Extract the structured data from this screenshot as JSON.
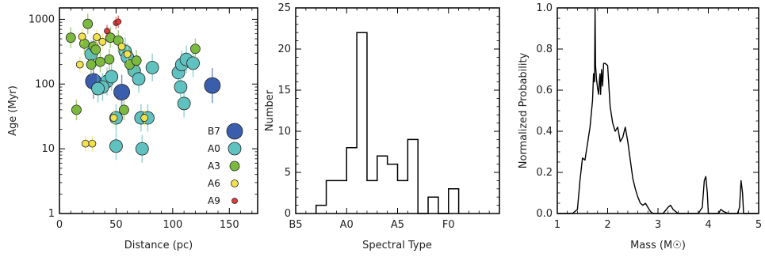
{
  "chart_data": [
    {
      "type": "scatter",
      "title": "",
      "xlabel": "Distance (pc)",
      "ylabel": "Age (Myr)",
      "xlim": [
        0,
        175
      ],
      "ylim": [
        1,
        1500
      ],
      "yscale": "log",
      "xticks": [
        "0",
        "50",
        "100",
        "150"
      ],
      "yticks": [
        "1",
        "10",
        "100",
        "1000"
      ],
      "legend": {
        "placement": "lower-right",
        "entries": [
          {
            "label": "B7",
            "color": "#3a5eab",
            "size": 10
          },
          {
            "label": "A0",
            "color": "#5fc2c0",
            "size": 8
          },
          {
            "label": "A3",
            "color": "#7cba3f",
            "size": 6
          },
          {
            "label": "A6",
            "color": "#f2e14a",
            "size": 4.5
          },
          {
            "label": "A9",
            "color": "#e03a3a",
            "size": 3.5
          }
        ]
      },
      "series": [
        {
          "class": "B7",
          "points": [
            [
              30,
              110
            ],
            [
              55,
              75
            ],
            [
              135,
              95
            ]
          ]
        },
        {
          "class": "A0",
          "points": [
            [
              28,
              290
            ],
            [
              42,
              110
            ],
            [
              46,
              130
            ],
            [
              50,
              30
            ],
            [
              58,
              320
            ],
            [
              60,
              260
            ],
            [
              66,
              160
            ],
            [
              70,
              120
            ],
            [
              72,
              30
            ],
            [
              78,
              30
            ],
            [
              82,
              180
            ],
            [
              105,
              150
            ],
            [
              108,
              200
            ],
            [
              110,
              50
            ],
            [
              112,
              240
            ],
            [
              118,
              210
            ],
            [
              38,
              90
            ],
            [
              34,
              85
            ],
            [
              50,
              11
            ],
            [
              73,
              10
            ],
            [
              107,
              90
            ]
          ]
        },
        {
          "class": "A3",
          "points": [
            [
              10,
              520
            ],
            [
              15,
              40
            ],
            [
              22,
              420
            ],
            [
              25,
              850
            ],
            [
              30,
              380
            ],
            [
              32,
              340
            ],
            [
              36,
              220
            ],
            [
              45,
              520
            ],
            [
              52,
              470
            ],
            [
              57,
              40
            ],
            [
              62,
              200
            ],
            [
              68,
              230
            ],
            [
              120,
              350
            ],
            [
              44,
              240
            ],
            [
              28,
              200
            ]
          ]
        },
        {
          "class": "A6",
          "points": [
            [
              20,
              540
            ],
            [
              23,
              12
            ],
            [
              29,
              12
            ],
            [
              33,
              530
            ],
            [
              38,
              450
            ],
            [
              48,
              30
            ],
            [
              55,
              380
            ],
            [
              60,
              290
            ],
            [
              75,
              30
            ],
            [
              18,
              200
            ]
          ]
        },
        {
          "class": "A9",
          "points": [
            [
              42,
              660
            ],
            [
              50,
              880
            ],
            [
              52,
              920
            ]
          ]
        }
      ]
    },
    {
      "type": "bar",
      "title": "",
      "xlabel": "Spectral Type",
      "ylabel": "Number",
      "xlim": [
        0,
        20
      ],
      "ylim": [
        0,
        25
      ],
      "xticks": [
        "B5",
        "A0",
        "A5",
        "F0"
      ],
      "yticks": [
        "0",
        "5",
        "10",
        "15",
        "20",
        "25"
      ],
      "histogram": [
        1,
        4,
        4,
        8,
        22,
        4,
        7,
        6,
        4,
        9,
        0,
        2,
        0,
        3
      ],
      "bin_start": 2,
      "bin_width": 1
    },
    {
      "type": "line",
      "title": "",
      "xlabel": "Mass (M☉)",
      "ylabel": "Normalized Probability",
      "xlim": [
        1,
        5
      ],
      "ylim": [
        0,
        1
      ],
      "xticks": [
        "1",
        "2",
        "3",
        "4",
        "5"
      ],
      "yticks": [
        "0.0",
        "0.2",
        "0.4",
        "0.6",
        "0.8",
        "1.0"
      ],
      "x": [
        1.0,
        1.3,
        1.4,
        1.45,
        1.5,
        1.55,
        1.6,
        1.65,
        1.7,
        1.72,
        1.74,
        1.75,
        1.76,
        1.78,
        1.8,
        1.82,
        1.84,
        1.85,
        1.86,
        1.88,
        1.9,
        1.92,
        1.95,
        2.0,
        2.05,
        2.1,
        2.15,
        2.2,
        2.25,
        2.3,
        2.35,
        2.4,
        2.45,
        2.5,
        2.55,
        2.6,
        2.65,
        2.7,
        2.75,
        2.8,
        2.85,
        2.9,
        3.0,
        3.1,
        3.2,
        3.25,
        3.3,
        3.4,
        3.5,
        3.6,
        3.7,
        3.8,
        3.88,
        3.92,
        3.95,
        3.98,
        4.0,
        4.05,
        4.1,
        4.2,
        4.25,
        4.3,
        4.4,
        4.5,
        4.58,
        4.62,
        4.65,
        4.68,
        4.7,
        4.8,
        5.0
      ],
      "y": [
        0.0,
        0.0,
        0.02,
        0.16,
        0.27,
        0.26,
        0.34,
        0.42,
        0.55,
        0.68,
        0.64,
        1.0,
        0.72,
        0.65,
        0.61,
        0.58,
        0.66,
        0.68,
        0.58,
        0.7,
        0.62,
        0.73,
        0.73,
        0.72,
        0.52,
        0.44,
        0.4,
        0.42,
        0.35,
        0.37,
        0.42,
        0.35,
        0.26,
        0.17,
        0.12,
        0.08,
        0.05,
        0.04,
        0.05,
        0.03,
        0.01,
        0.0,
        0.0,
        0.0,
        0.03,
        0.04,
        0.02,
        0.0,
        0.0,
        0.0,
        0.0,
        0.0,
        0.03,
        0.16,
        0.18,
        0.1,
        0.0,
        0.0,
        0.0,
        0.0,
        0.02,
        0.01,
        0.0,
        0.0,
        0.0,
        0.03,
        0.16,
        0.1,
        0.0,
        0.0,
        0.0
      ]
    }
  ]
}
